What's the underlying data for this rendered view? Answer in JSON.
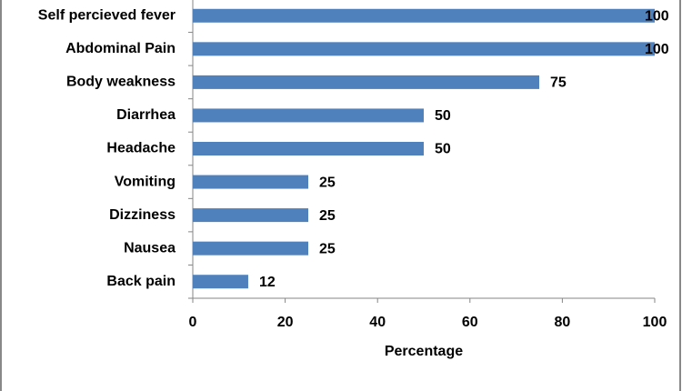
{
  "chart_data": {
    "type": "bar",
    "orientation": "horizontal",
    "x_label": "Percentage",
    "categories": [
      "Self percieved fever",
      "Abdominal Pain",
      "Body weakness",
      "Diarrhea",
      "Headache",
      "Vomiting",
      "Dizziness",
      "Nausea",
      "Back pain"
    ],
    "values": [
      100,
      100,
      75,
      50,
      50,
      25,
      25,
      25,
      12
    ],
    "color": "#4f81bd",
    "xlim": [
      0,
      100
    ],
    "xticks": [
      0,
      20,
      40,
      60,
      80,
      100
    ],
    "grid": false
  }
}
